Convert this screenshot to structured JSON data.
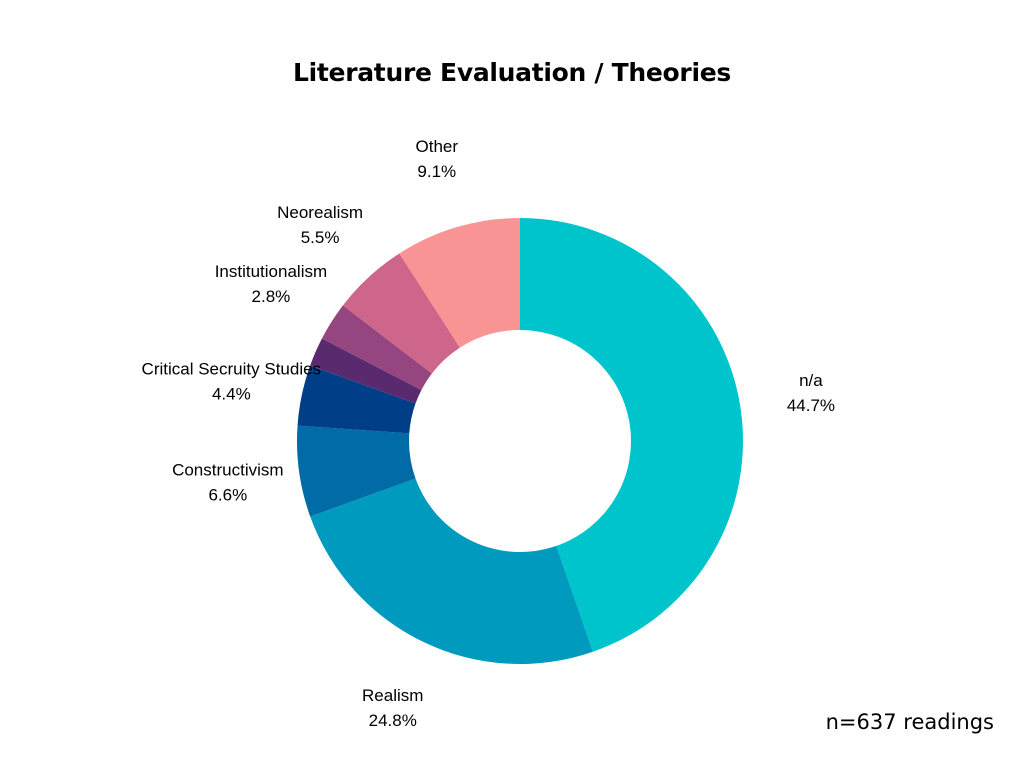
{
  "chart_data": {
    "type": "pie",
    "title": "Literature Evaluation / Theories",
    "donut": true,
    "start_angle": "12 o'clock",
    "direction": "clockwise",
    "slices": [
      {
        "label": "n/a",
        "value": 44.7,
        "value_label": "44.7%",
        "color": "#00C4CC"
      },
      {
        "label": "Realism",
        "value": 24.8,
        "value_label": "24.8%",
        "color": "#009ABF"
      },
      {
        "label": "Constructivism",
        "value": 6.6,
        "value_label": "6.6%",
        "color": "#006BA6"
      },
      {
        "label": "Critical Secruity Studies",
        "value": 4.4,
        "value_label": "4.4%",
        "color": "#003F87"
      },
      {
        "label": "",
        "value": 2.1,
        "value_label": "",
        "color": "#5A2A6E"
      },
      {
        "label": "Institutionalism",
        "value": 2.8,
        "value_label": "2.8%",
        "color": "#95457F"
      },
      {
        "label": "Neorealism",
        "value": 5.5,
        "value_label": "5.5%",
        "color": "#CD668A"
      },
      {
        "label": "Other",
        "value": 9.1,
        "value_label": "9.1%",
        "color": "#F99495"
      }
    ]
  },
  "footnote": "n=637 readings"
}
